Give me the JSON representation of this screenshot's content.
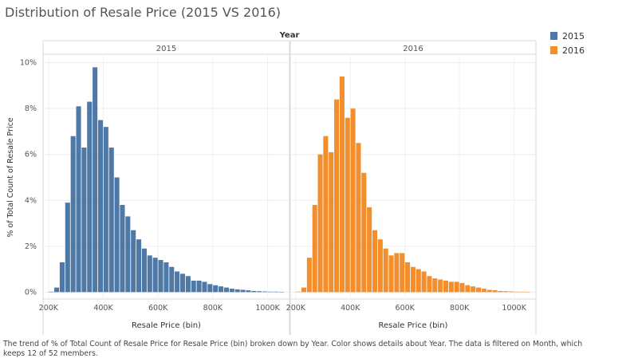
{
  "title": "Distribution of Resale Price (2015 VS 2016)",
  "caption": "The trend of % of Total Count of Resale Price for Resale Price (bin) broken down by Year.  Color shows details about Year. The data is filtered on Month, which keeps 12 of 52 members.",
  "colors": {
    "s2015": "#4e79a7",
    "s2016": "#f28e2b"
  },
  "legend": [
    {
      "label": "2015",
      "color": "#4e79a7"
    },
    {
      "label": "2016",
      "color": "#f28e2b"
    }
  ],
  "chart_data": {
    "type": "bar",
    "header": "Year",
    "xlabel": "Resale Price (bin)",
    "ylabel": "% of Total Count of Resale Price",
    "x_ticks": [
      {
        "value": 200000,
        "label": "200K"
      },
      {
        "value": 400000,
        "label": "400K"
      },
      {
        "value": 600000,
        "label": "600K"
      },
      {
        "value": 800000,
        "label": "800K"
      },
      {
        "value": 1000000,
        "label": "1000K"
      }
    ],
    "y_ticks": [
      {
        "value": 0,
        "label": "0%"
      },
      {
        "value": 2,
        "label": "2%"
      },
      {
        "value": 4,
        "label": "4%"
      },
      {
        "value": 6,
        "label": "6%"
      },
      {
        "value": 8,
        "label": "8%"
      },
      {
        "value": 10,
        "label": "10%"
      }
    ],
    "xlim": [
      180000,
      1080000
    ],
    "ylim": [
      -0.3,
      10.3
    ],
    "bin_width": 20000,
    "grid": true,
    "legend_position": "top-right",
    "series": [
      {
        "name": "2015",
        "bin_starts": [
          200000,
          220000,
          240000,
          260000,
          280000,
          300000,
          320000,
          340000,
          360000,
          380000,
          400000,
          420000,
          440000,
          460000,
          480000,
          500000,
          520000,
          540000,
          560000,
          580000,
          600000,
          620000,
          640000,
          660000,
          680000,
          700000,
          720000,
          740000,
          760000,
          780000,
          800000,
          820000,
          840000,
          860000,
          880000,
          900000,
          920000,
          940000,
          960000,
          980000,
          1000000,
          1020000,
          1040000
        ],
        "values": [
          0.02,
          0.2,
          1.3,
          3.9,
          6.8,
          8.1,
          6.3,
          8.3,
          9.8,
          7.5,
          7.2,
          6.3,
          5.0,
          3.8,
          3.3,
          2.7,
          2.3,
          1.9,
          1.6,
          1.5,
          1.4,
          1.3,
          1.1,
          0.9,
          0.8,
          0.7,
          0.5,
          0.5,
          0.45,
          0.35,
          0.3,
          0.25,
          0.2,
          0.15,
          0.12,
          0.1,
          0.08,
          0.05,
          0.04,
          0.03,
          0.02,
          0.02,
          0.01
        ]
      },
      {
        "name": "2016",
        "bin_starts": [
          200000,
          220000,
          240000,
          260000,
          280000,
          300000,
          320000,
          340000,
          360000,
          380000,
          400000,
          420000,
          440000,
          460000,
          480000,
          500000,
          520000,
          540000,
          560000,
          580000,
          600000,
          620000,
          640000,
          660000,
          680000,
          700000,
          720000,
          740000,
          760000,
          780000,
          800000,
          820000,
          840000,
          860000,
          880000,
          900000,
          920000,
          940000,
          960000,
          980000,
          1000000,
          1020000,
          1040000
        ],
        "values": [
          0.02,
          0.2,
          1.5,
          3.8,
          6.0,
          6.8,
          6.1,
          8.4,
          9.4,
          7.6,
          8.0,
          6.5,
          5.2,
          3.7,
          2.7,
          2.3,
          1.9,
          1.6,
          1.7,
          1.7,
          1.3,
          1.1,
          1.0,
          0.9,
          0.7,
          0.6,
          0.55,
          0.5,
          0.45,
          0.45,
          0.4,
          0.3,
          0.25,
          0.2,
          0.15,
          0.1,
          0.08,
          0.05,
          0.04,
          0.03,
          0.02,
          0.02,
          0.01
        ]
      }
    ]
  }
}
